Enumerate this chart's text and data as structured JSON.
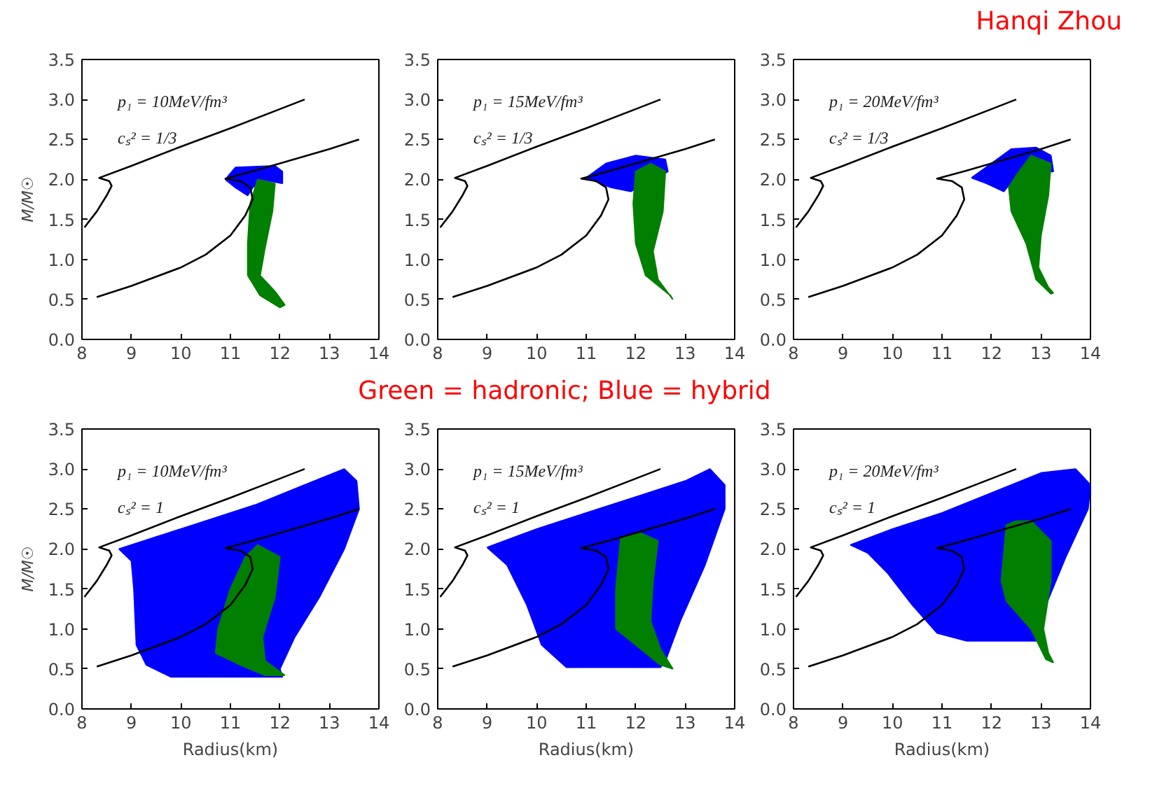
{
  "chart_data": [
    {
      "type": "line",
      "ylabel": "M/M☉",
      "xlim": [
        8,
        14
      ],
      "ylim": [
        0,
        3.5
      ],
      "xticks": [
        8,
        9,
        10,
        11,
        12,
        13,
        14
      ],
      "yticks": [
        {
          "value": 0,
          "label": "0.0"
        },
        {
          "value": 0.5,
          "label": "0.5"
        },
        {
          "value": 1,
          "label": "1.0"
        },
        {
          "value": 1.5,
          "label": "1.5"
        },
        {
          "value": 2,
          "label": "2.0"
        },
        {
          "value": 2.5,
          "label": "2.5"
        },
        {
          "value": 3,
          "label": "3.0"
        },
        {
          "value": 3.5,
          "label": "3.5"
        }
      ],
      "annotations": [
        "p₁ = 10MeV/fm³",
        "cₛ² = 1/3"
      ],
      "series": [
        {
          "color": "#000000",
          "x": [
            8.05,
            8.3,
            8.5,
            8.6,
            8.55,
            8.35,
            9,
            10,
            11,
            12,
            12.5
          ],
          "values": [
            1.4,
            1.6,
            1.8,
            1.92,
            1.98,
            2.02,
            2.17,
            2.41,
            2.64,
            2.88,
            3.0
          ]
        },
        {
          "type": "area",
          "color": "#0000ff",
          "x": [
            10.9,
            11.1,
            11.9,
            12.05,
            12.05,
            11.65,
            11.45,
            11.35,
            11.1,
            10.9
          ],
          "values": [
            2.0,
            2.15,
            2.17,
            2.1,
            1.95,
            2.0,
            1.9,
            1.8,
            1.9,
            2.0
          ]
        },
        {
          "type": "area",
          "color": "#007f00",
          "x": [
            11.55,
            11.9,
            11.85,
            11.7,
            11.6,
            11.9,
            12.1,
            12.0,
            11.6,
            11.35,
            11.35,
            11.4,
            11.55
          ],
          "values": [
            2.0,
            1.95,
            1.6,
            1.15,
            0.8,
            0.6,
            0.43,
            0.4,
            0.55,
            0.8,
            1.2,
            1.7,
            2.0
          ]
        },
        {
          "color": "#000000",
          "x": [
            8.3,
            9,
            10,
            10.5,
            11,
            11.3,
            11.45,
            11.4,
            11.2,
            10.9,
            11.5,
            12,
            13,
            13.6
          ],
          "values": [
            0.53,
            0.67,
            0.9,
            1.06,
            1.3,
            1.55,
            1.75,
            1.9,
            1.98,
            2.01,
            2.11,
            2.2,
            2.38,
            2.5
          ]
        }
      ]
    },
    {
      "type": "line",
      "xlim": [
        8,
        14
      ],
      "ylim": [
        0,
        3.5
      ],
      "xticks": [
        8,
        9,
        10,
        11,
        12,
        13,
        14
      ],
      "yticks": [
        {
          "value": 0,
          "label": "0.0"
        },
        {
          "value": 0.5,
          "label": "0.5"
        },
        {
          "value": 1,
          "label": "1.0"
        },
        {
          "value": 1.5,
          "label": "1.5"
        },
        {
          "value": 2,
          "label": "2.0"
        },
        {
          "value": 2.5,
          "label": "2.5"
        },
        {
          "value": 3,
          "label": "3.0"
        },
        {
          "value": 3.5,
          "label": "3.5"
        }
      ],
      "annotations": [
        "p₁ = 15MeV/fm³",
        "cₛ² = 1/3"
      ],
      "series": [
        {
          "color": "#000000",
          "x": [
            8.05,
            8.3,
            8.5,
            8.6,
            8.55,
            8.35,
            9,
            10,
            11,
            12,
            12.5
          ],
          "values": [
            1.4,
            1.6,
            1.8,
            1.92,
            1.98,
            2.02,
            2.17,
            2.41,
            2.64,
            2.88,
            3.0
          ]
        },
        {
          "type": "area",
          "color": "#0000ff",
          "x": [
            11.0,
            11.4,
            12.0,
            12.6,
            12.65,
            11.9,
            11.5,
            11.0
          ],
          "values": [
            2.02,
            2.2,
            2.3,
            2.25,
            2.1,
            1.85,
            1.9,
            2.02
          ]
        },
        {
          "type": "area",
          "color": "#007f00",
          "x": [
            12.0,
            12.3,
            12.6,
            12.55,
            12.35,
            12.45,
            12.75,
            12.7,
            12.2,
            12.0,
            11.95,
            12.0
          ],
          "values": [
            2.1,
            2.2,
            2.1,
            1.6,
            1.1,
            0.75,
            0.5,
            0.55,
            0.8,
            1.2,
            1.7,
            2.1
          ]
        },
        {
          "color": "#000000",
          "x": [
            8.3,
            9,
            10,
            10.5,
            11,
            11.3,
            11.45,
            11.4,
            11.2,
            10.9,
            11.5,
            12,
            13,
            13.6
          ],
          "values": [
            0.53,
            0.67,
            0.9,
            1.06,
            1.3,
            1.55,
            1.75,
            1.9,
            1.98,
            2.01,
            2.11,
            2.2,
            2.38,
            2.5
          ]
        }
      ]
    },
    {
      "type": "line",
      "xlim": [
        8,
        14
      ],
      "ylim": [
        0,
        3.5
      ],
      "xticks": [
        8,
        9,
        10,
        11,
        12,
        13,
        14
      ],
      "yticks": [
        {
          "value": 0,
          "label": "0.0"
        },
        {
          "value": 0.5,
          "label": "0.5"
        },
        {
          "value": 1,
          "label": "1.0"
        },
        {
          "value": 1.5,
          "label": "1.5"
        },
        {
          "value": 2,
          "label": "2.0"
        },
        {
          "value": 2.5,
          "label": "2.5"
        },
        {
          "value": 3,
          "label": "3.0"
        },
        {
          "value": 3.5,
          "label": "3.5"
        }
      ],
      "annotations": [
        "p₁ = 20MeV/fm³",
        "cₛ² = 1/3",
        "Hanqi Zhou"
      ],
      "series": [
        {
          "color": "#000000",
          "x": [
            8.05,
            8.3,
            8.5,
            8.6,
            8.55,
            8.35,
            9,
            10,
            11,
            12,
            12.5
          ],
          "values": [
            1.4,
            1.6,
            1.8,
            1.92,
            1.98,
            2.02,
            2.17,
            2.41,
            2.64,
            2.88,
            3.0
          ]
        },
        {
          "type": "area",
          "color": "#0000ff",
          "x": [
            11.6,
            12.0,
            12.4,
            12.9,
            13.2,
            13.25,
            12.5,
            12.25,
            11.9,
            11.6
          ],
          "values": [
            2.02,
            2.2,
            2.38,
            2.4,
            2.3,
            2.1,
            2.05,
            1.85,
            1.95,
            2.02
          ]
        },
        {
          "type": "area",
          "color": "#007f00",
          "x": [
            12.5,
            12.8,
            13.2,
            13.15,
            13.0,
            12.95,
            13.15,
            13.25,
            13.2,
            12.9,
            12.7,
            12.4,
            12.35,
            12.5
          ],
          "values": [
            2.05,
            2.3,
            2.2,
            1.8,
            1.3,
            0.9,
            0.65,
            0.58,
            0.57,
            0.75,
            1.2,
            1.6,
            1.9,
            2.05
          ]
        },
        {
          "color": "#000000",
          "x": [
            8.3,
            9,
            10,
            10.5,
            11,
            11.3,
            11.45,
            11.4,
            11.2,
            10.9,
            11.5,
            12,
            13,
            13.6
          ],
          "values": [
            0.53,
            0.67,
            0.9,
            1.06,
            1.3,
            1.55,
            1.75,
            1.9,
            1.98,
            2.01,
            2.11,
            2.2,
            2.38,
            2.5
          ]
        }
      ]
    },
    {
      "type": "line",
      "xlabel": "Radius(km)",
      "ylabel": "M/M☉",
      "xlim": [
        8,
        14
      ],
      "ylim": [
        0,
        3.5
      ],
      "xticks": [
        8,
        9,
        10,
        11,
        12,
        13,
        14
      ],
      "yticks": [
        {
          "value": 0,
          "label": "0.0"
        },
        {
          "value": 0.5,
          "label": "0.5"
        },
        {
          "value": 1,
          "label": "1.0"
        },
        {
          "value": 1.5,
          "label": "1.5"
        },
        {
          "value": 2,
          "label": "2.0"
        },
        {
          "value": 2.5,
          "label": "2.5"
        },
        {
          "value": 3,
          "label": "3.0"
        },
        {
          "value": 3.5,
          "label": "3.5"
        }
      ],
      "annotations": [
        "p₁ = 10MeV/fm³",
        "cₛ² = 1",
        "Green = hadronic; Blue = hybrid"
      ],
      "series": [
        {
          "type": "area",
          "color": "#0000ff",
          "x": [
            8.75,
            9.5,
            10.5,
            11.5,
            12.5,
            13.3,
            13.55,
            13.6,
            13.3,
            12.8,
            12.3,
            12.0,
            12.05,
            9.8,
            9.3,
            9.1,
            9.05,
            9.0,
            8.75
          ],
          "values": [
            2.0,
            2.15,
            2.35,
            2.55,
            2.8,
            3.0,
            2.85,
            2.5,
            2.0,
            1.4,
            0.9,
            0.5,
            0.4,
            0.4,
            0.55,
            0.8,
            1.5,
            1.85,
            2.0
          ]
        },
        {
          "type": "area",
          "color": "#007f00",
          "x": [
            11.55,
            12.0,
            11.9,
            11.65,
            11.7,
            12.1,
            11.7,
            11.2,
            10.7,
            10.75,
            11.0,
            11.3,
            11.55
          ],
          "values": [
            2.05,
            1.9,
            1.4,
            0.9,
            0.6,
            0.42,
            0.42,
            0.55,
            0.7,
            1.0,
            1.5,
            1.9,
            2.05
          ]
        },
        {
          "color": "#000000",
          "x": [
            8.05,
            8.3,
            8.5,
            8.6,
            8.55,
            8.35,
            9,
            10,
            11,
            12,
            12.5
          ],
          "values": [
            1.4,
            1.6,
            1.8,
            1.92,
            1.98,
            2.02,
            2.17,
            2.41,
            2.64,
            2.88,
            3.0
          ]
        },
        {
          "color": "#000000",
          "x": [
            8.3,
            9,
            10,
            10.5,
            11,
            11.3,
            11.45,
            11.4,
            11.2,
            10.9,
            11.5,
            12,
            13,
            13.6
          ],
          "values": [
            0.53,
            0.67,
            0.9,
            1.06,
            1.3,
            1.55,
            1.75,
            1.9,
            1.98,
            2.01,
            2.11,
            2.2,
            2.38,
            2.5
          ]
        }
      ]
    },
    {
      "type": "line",
      "xlabel": "Radius(km)",
      "xlim": [
        8,
        14
      ],
      "ylim": [
        0,
        3.5
      ],
      "xticks": [
        8,
        9,
        10,
        11,
        12,
        13,
        14
      ],
      "yticks": [
        {
          "value": 0,
          "label": "0.0"
        },
        {
          "value": 0.5,
          "label": "0.5"
        },
        {
          "value": 1,
          "label": "1.0"
        },
        {
          "value": 1.5,
          "label": "1.5"
        },
        {
          "value": 2,
          "label": "2.0"
        },
        {
          "value": 2.5,
          "label": "2.5"
        },
        {
          "value": 3,
          "label": "3.0"
        },
        {
          "value": 3.5,
          "label": "3.5"
        }
      ],
      "annotations": [
        "p₁ = 15MeV/fm³",
        "cₛ² = 1"
      ],
      "series": [
        {
          "type": "area",
          "color": "#0000ff",
          "x": [
            9.0,
            10,
            11,
            12,
            13,
            13.5,
            13.8,
            13.8,
            13.4,
            12.9,
            12.6,
            12.5,
            10.6,
            10.1,
            9.8,
            9.4,
            9.0
          ],
          "values": [
            2.02,
            2.25,
            2.45,
            2.65,
            2.85,
            3.0,
            2.8,
            2.5,
            1.8,
            1.1,
            0.6,
            0.52,
            0.52,
            0.8,
            1.3,
            1.8,
            2.02
          ]
        },
        {
          "type": "area",
          "color": "#007f00",
          "x": [
            11.7,
            12.1,
            12.45,
            12.35,
            12.3,
            12.5,
            12.75,
            12.5,
            12.0,
            11.6,
            11.6,
            11.7
          ],
          "values": [
            2.15,
            2.2,
            2.1,
            1.6,
            1.1,
            0.75,
            0.5,
            0.55,
            0.8,
            1.0,
            1.5,
            2.15
          ]
        },
        {
          "color": "#000000",
          "x": [
            8.05,
            8.3,
            8.5,
            8.6,
            8.55,
            8.35,
            9,
            10,
            11,
            12,
            12.5
          ],
          "values": [
            1.4,
            1.6,
            1.8,
            1.92,
            1.98,
            2.02,
            2.17,
            2.41,
            2.64,
            2.88,
            3.0
          ]
        },
        {
          "color": "#000000",
          "x": [
            8.3,
            9,
            10,
            10.5,
            11,
            11.3,
            11.45,
            11.4,
            11.2,
            10.9,
            11.5,
            12,
            13,
            13.6
          ],
          "values": [
            0.53,
            0.67,
            0.9,
            1.06,
            1.3,
            1.55,
            1.75,
            1.9,
            1.98,
            2.01,
            2.11,
            2.2,
            2.38,
            2.5
          ]
        }
      ]
    },
    {
      "type": "line",
      "xlabel": "Radius(km)",
      "xlim": [
        8,
        14
      ],
      "ylim": [
        0,
        3.5
      ],
      "xticks": [
        8,
        9,
        10,
        11,
        12,
        13,
        14
      ],
      "yticks": [
        {
          "value": 0,
          "label": "0.0"
        },
        {
          "value": 0.5,
          "label": "0.5"
        },
        {
          "value": 1,
          "label": "1.0"
        },
        {
          "value": 1.5,
          "label": "1.5"
        },
        {
          "value": 2,
          "label": "2.0"
        },
        {
          "value": 2.5,
          "label": "2.5"
        },
        {
          "value": 3,
          "label": "3.0"
        },
        {
          "value": 3.5,
          "label": "3.5"
        }
      ],
      "annotations": [
        "p₁ = 20MeV/fm³",
        "cₛ² = 1"
      ],
      "series": [
        {
          "type": "area",
          "color": "#0000ff",
          "x": [
            9.15,
            10,
            11,
            12,
            13,
            13.7,
            14.0,
            13.95,
            13.5,
            13.1,
            12.95,
            11.5,
            10.9,
            10.4,
            9.9,
            9.5,
            9.15
          ],
          "values": [
            2.05,
            2.25,
            2.45,
            2.7,
            2.95,
            3.0,
            2.8,
            2.5,
            1.9,
            1.3,
            0.85,
            0.85,
            0.95,
            1.3,
            1.7,
            1.95,
            2.05
          ]
        },
        {
          "type": "area",
          "color": "#007f00",
          "x": [
            12.5,
            12.8,
            13.2,
            13.2,
            13.05,
            13.15,
            13.25,
            13.1,
            12.8,
            12.3,
            12.2,
            12.3,
            12.5
          ],
          "values": [
            2.35,
            2.35,
            2.1,
            1.6,
            1.0,
            0.7,
            0.58,
            0.62,
            1.0,
            1.35,
            1.6,
            2.3,
            2.35
          ]
        },
        {
          "color": "#000000",
          "x": [
            8.05,
            8.3,
            8.5,
            8.6,
            8.55,
            8.35,
            9,
            10,
            11,
            12,
            12.5
          ],
          "values": [
            1.4,
            1.6,
            1.8,
            1.92,
            1.98,
            2.02,
            2.17,
            2.41,
            2.64,
            2.88,
            3.0
          ]
        },
        {
          "color": "#000000",
          "x": [
            8.3,
            9,
            10,
            10.5,
            11,
            11.3,
            11.45,
            11.4,
            11.2,
            10.9,
            11.5,
            12,
            13,
            13.6
          ],
          "values": [
            0.53,
            0.67,
            0.9,
            1.06,
            1.3,
            1.55,
            1.75,
            1.9,
            1.98,
            2.01,
            2.11,
            2.2,
            2.38,
            2.5
          ]
        }
      ]
    }
  ]
}
